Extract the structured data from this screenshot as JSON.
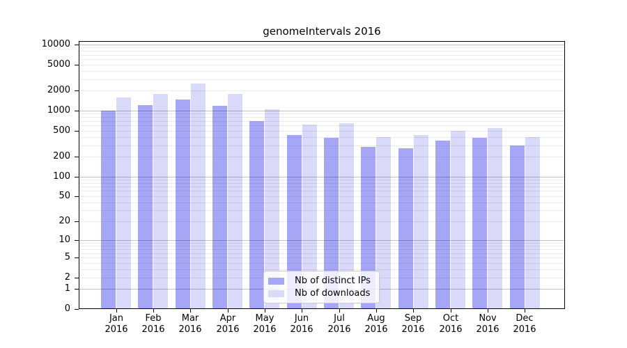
{
  "chart_data": {
    "type": "bar",
    "title": "genomeIntervals 2016",
    "categories": [
      "Jan",
      "Feb",
      "Mar",
      "Apr",
      "May",
      "Jun",
      "Jul",
      "Aug",
      "Sep",
      "Oct",
      "Nov",
      "Dec"
    ],
    "category_year": "2016",
    "series": [
      {
        "name": "Nb of distinct IPs",
        "color": "#a6a6f7",
        "values": [
          1010,
          1220,
          1470,
          1190,
          690,
          430,
          385,
          280,
          270,
          350,
          390,
          295
        ]
      },
      {
        "name": "Nb of downloads",
        "color": "#d9d9f9",
        "values": [
          1600,
          1810,
          2560,
          1800,
          1050,
          620,
          650,
          400,
          430,
          500,
          545,
          395
        ]
      }
    ],
    "yscale": "log1p",
    "ylim": [
      0,
      11300
    ],
    "yticks": [
      0,
      1,
      2,
      5,
      10,
      20,
      50,
      100,
      200,
      500,
      1000,
      2000,
      5000,
      10000
    ],
    "ytick_labels": [
      "0",
      "1",
      "2",
      "5",
      "10",
      "20",
      "50",
      "100",
      "200",
      "500",
      "1000",
      "2000",
      "5000",
      "10000"
    ],
    "grid": {
      "show": true,
      "minor_color": "#ebebeb",
      "major_color": "#c3c3c3"
    },
    "legend": {
      "position": "lower center"
    },
    "axis_color": "#000000",
    "background": "#ffffff"
  }
}
